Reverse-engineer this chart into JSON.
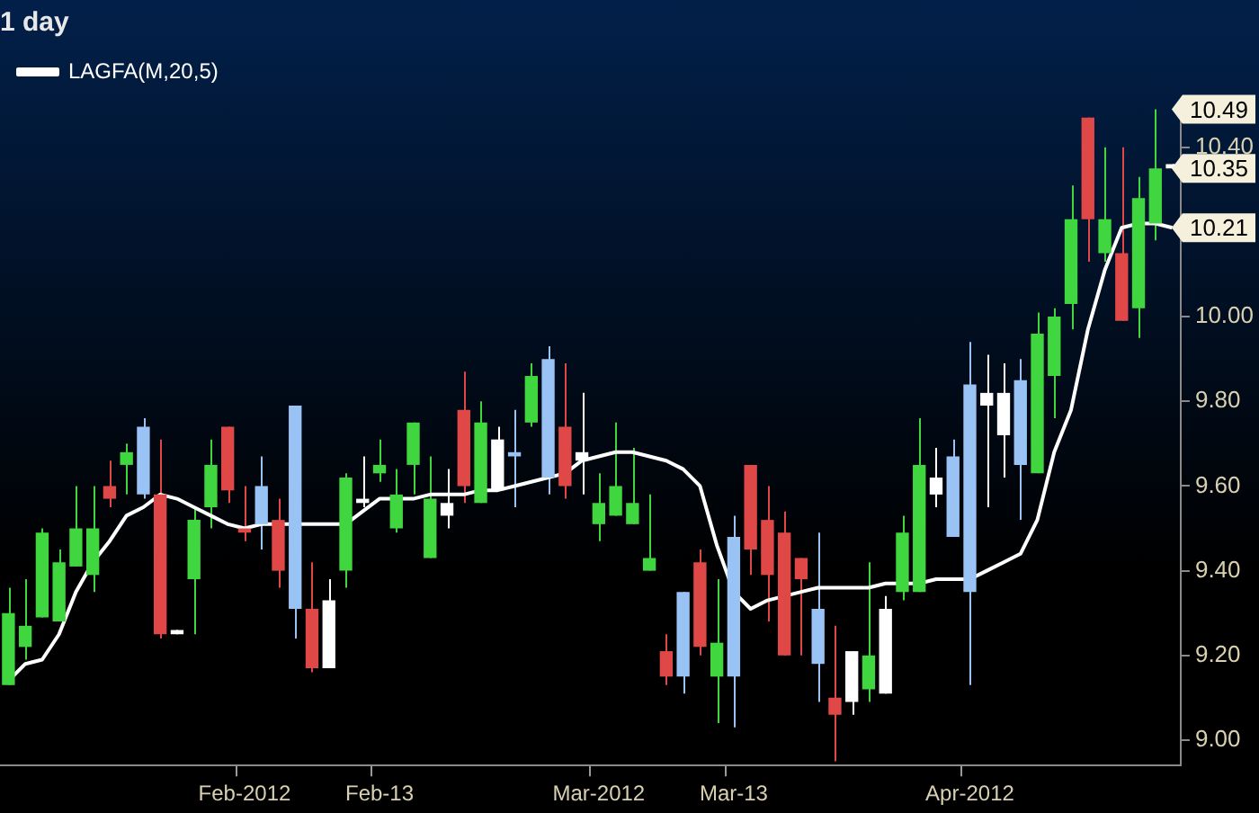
{
  "chart_data": {
    "type": "candlestick",
    "title": "1 day",
    "categories": [
      null,
      null,
      null,
      null,
      null,
      null,
      null,
      null,
      null,
      null,
      null,
      null,
      null,
      null,
      "Feb-2012",
      null,
      null,
      null,
      null,
      null,
      null,
      null,
      "Feb-13",
      null,
      null,
      null,
      null,
      null,
      null,
      null,
      null,
      null,
      null,
      null,
      null,
      "Mar-2012",
      null,
      null,
      null,
      null,
      null,
      null,
      null,
      "Mar-13",
      null,
      null,
      null,
      null,
      null,
      null,
      null,
      null,
      null,
      null,
      null,
      null,
      null,
      "Apr-2012",
      null,
      null,
      null,
      null,
      null,
      null,
      null,
      null,
      null,
      null,
      null,
      null
    ],
    "ohlc": [
      [
        9.13,
        9.36,
        9.13,
        9.3
      ],
      [
        9.22,
        9.38,
        9.19,
        9.27
      ],
      [
        9.29,
        9.5,
        9.29,
        9.49
      ],
      [
        9.28,
        9.45,
        9.28,
        9.42
      ],
      [
        9.41,
        9.6,
        9.41,
        9.5
      ],
      [
        9.39,
        9.6,
        9.35,
        9.5
      ],
      [
        9.6,
        9.66,
        9.55,
        9.57
      ],
      [
        9.65,
        9.7,
        9.58,
        9.68
      ],
      [
        9.58,
        9.76,
        9.57,
        9.74
      ],
      [
        9.58,
        9.71,
        9.24,
        9.25
      ],
      [
        9.25,
        9.26,
        9.25,
        9.26
      ],
      [
        9.38,
        9.55,
        9.25,
        9.52
      ],
      [
        9.55,
        9.71,
        9.5,
        9.65
      ],
      [
        9.74,
        9.74,
        9.56,
        9.59
      ],
      [
        9.5,
        9.6,
        9.47,
        9.49
      ],
      [
        9.51,
        9.67,
        9.45,
        9.6
      ],
      [
        9.52,
        9.57,
        9.36,
        9.4
      ],
      [
        9.31,
        9.79,
        9.24,
        9.79
      ],
      [
        9.31,
        9.42,
        9.16,
        9.17
      ],
      [
        9.17,
        9.38,
        9.17,
        9.33
      ],
      [
        9.4,
        9.63,
        9.36,
        9.62
      ],
      [
        9.56,
        9.67,
        9.55,
        9.57
      ],
      [
        9.63,
        9.71,
        9.61,
        9.65
      ],
      [
        9.5,
        9.64,
        9.49,
        9.58
      ],
      [
        9.65,
        9.75,
        9.58,
        9.75
      ],
      [
        9.43,
        9.67,
        9.43,
        9.57
      ],
      [
        9.53,
        9.64,
        9.5,
        9.56
      ],
      [
        9.78,
        9.87,
        9.56,
        9.6
      ],
      [
        9.56,
        9.8,
        9.56,
        9.75
      ],
      [
        9.59,
        9.74,
        9.59,
        9.71
      ],
      [
        9.67,
        9.78,
        9.55,
        9.68
      ],
      [
        9.75,
        9.89,
        9.74,
        9.86
      ],
      [
        9.62,
        9.93,
        9.58,
        9.9
      ],
      [
        9.74,
        9.89,
        9.57,
        9.6
      ],
      [
        9.66,
        9.82,
        9.58,
        9.68
      ],
      [
        9.51,
        9.63,
        9.47,
        9.56
      ],
      [
        9.53,
        9.75,
        9.53,
        9.6
      ],
      [
        9.51,
        9.69,
        9.51,
        9.56
      ],
      [
        9.4,
        9.58,
        9.4,
        9.43
      ],
      [
        9.21,
        9.25,
        9.13,
        9.15
      ],
      [
        9.15,
        9.35,
        9.11,
        9.35
      ],
      [
        9.42,
        9.45,
        9.2,
        9.22
      ],
      [
        9.15,
        9.38,
        9.04,
        9.23
      ],
      [
        9.15,
        9.53,
        9.03,
        9.48
      ],
      [
        9.65,
        9.65,
        9.39,
        9.45
      ],
      [
        9.52,
        9.6,
        9.28,
        9.39
      ],
      [
        9.49,
        9.54,
        9.2,
        9.2
      ],
      [
        9.43,
        9.43,
        9.2,
        9.38
      ],
      [
        9.18,
        9.49,
        9.09,
        9.31
      ],
      [
        9.1,
        9.27,
        8.95,
        9.06
      ],
      [
        9.09,
        9.21,
        9.06,
        9.21
      ],
      [
        9.12,
        9.42,
        9.09,
        9.2
      ],
      [
        9.11,
        9.34,
        9.11,
        9.31
      ],
      [
        9.35,
        9.53,
        9.33,
        9.49
      ],
      [
        9.35,
        9.76,
        9.35,
        9.65
      ],
      [
        9.58,
        9.69,
        9.55,
        9.62
      ],
      [
        9.48,
        9.71,
        9.48,
        9.67
      ],
      [
        9.35,
        9.94,
        9.13,
        9.84
      ],
      [
        9.79,
        9.91,
        9.55,
        9.82
      ],
      [
        9.72,
        9.89,
        9.62,
        9.82
      ],
      [
        9.65,
        9.9,
        9.52,
        9.85
      ],
      [
        9.63,
        10.01,
        9.63,
        9.96
      ],
      [
        9.86,
        10.02,
        9.76,
        10.0
      ],
      [
        10.03,
        10.31,
        9.97,
        10.23
      ],
      [
        10.47,
        10.47,
        10.13,
        10.23
      ],
      [
        10.15,
        10.4,
        10.13,
        10.23
      ],
      [
        10.15,
        10.4,
        9.99,
        9.99
      ],
      [
        10.02,
        10.33,
        9.95,
        10.28
      ],
      [
        10.22,
        10.49,
        10.18,
        10.35
      ],
      [
        10.35,
        10.36,
        10.35,
        10.36
      ]
    ],
    "colors": [
      "#3fd63f",
      "#3fd63f",
      "#3fd63f",
      "#3fd63f",
      "#3fd63f",
      "#3fd63f",
      "#e04848",
      "#3fd63f",
      "#99c2f5",
      "#e04848",
      "#ffffff",
      "#3fd63f",
      "#3fd63f",
      "#e04848",
      "#e04848",
      "#99c2f5",
      "#e04848",
      "#99c2f5",
      "#e04848",
      "#ffffff",
      "#3fd63f",
      "#ffffff",
      "#3fd63f",
      "#3fd63f",
      "#3fd63f",
      "#3fd63f",
      "#ffffff",
      "#e04848",
      "#3fd63f",
      "#ffffff",
      "#99c2f5",
      "#3fd63f",
      "#99c2f5",
      "#e04848",
      "#ffffff",
      "#3fd63f",
      "#3fd63f",
      "#3fd63f",
      "#3fd63f",
      "#e04848",
      "#99c2f5",
      "#e04848",
      "#3fd63f",
      "#99c2f5",
      "#e04848",
      "#e04848",
      "#e04848",
      "#e04848",
      "#99c2f5",
      "#e04848",
      "#ffffff",
      "#3fd63f",
      "#ffffff",
      "#3fd63f",
      "#3fd63f",
      "#ffffff",
      "#99c2f5",
      "#99c2f5",
      "#ffffff",
      "#ffffff",
      "#99c2f5",
      "#3fd63f",
      "#3fd63f",
      "#3fd63f",
      "#e04848",
      "#3fd63f",
      "#e04848",
      "#3fd63f",
      "#3fd63f",
      "#ffffff"
    ],
    "series": [
      {
        "name": "LAGFA(M,20,5)",
        "type": "line",
        "color": "#ffffff",
        "values": [
          9.14,
          9.18,
          9.19,
          9.25,
          9.35,
          9.42,
          9.47,
          9.53,
          9.55,
          9.58,
          9.57,
          9.55,
          9.53,
          9.51,
          9.5,
          9.51,
          9.51,
          9.51,
          9.51,
          9.51,
          9.51,
          9.54,
          9.57,
          9.57,
          9.57,
          9.58,
          9.58,
          9.58,
          9.59,
          9.59,
          9.6,
          9.61,
          9.62,
          9.63,
          9.66,
          9.67,
          9.68,
          9.68,
          9.67,
          9.66,
          9.64,
          9.6,
          9.46,
          9.35,
          9.31,
          9.33,
          9.34,
          9.35,
          9.36,
          9.36,
          9.36,
          9.36,
          9.37,
          9.37,
          9.37,
          9.38,
          9.38,
          9.38,
          9.4,
          9.42,
          9.44,
          9.52,
          9.68,
          9.78,
          9.97,
          10.11,
          10.21,
          10.22,
          10.22,
          10.21
        ]
      }
    ],
    "ylim": [
      8.94,
      10.51
    ],
    "yticks": [
      {
        "value": 9.0,
        "label": "9.00"
      },
      {
        "value": 9.2,
        "label": "9.20"
      },
      {
        "value": 9.4,
        "label": "9.40"
      },
      {
        "value": 9.6,
        "label": "9.60"
      },
      {
        "value": 9.8,
        "label": "9.80"
      },
      {
        "value": 10.0,
        "label": "10.00"
      },
      {
        "value": 10.4,
        "label": "10.40"
      }
    ],
    "annotations": [
      "10.49",
      "10.35",
      "10.21"
    ],
    "legend": "top left",
    "grid": false,
    "marker": "none",
    "line_style": "solid"
  }
}
